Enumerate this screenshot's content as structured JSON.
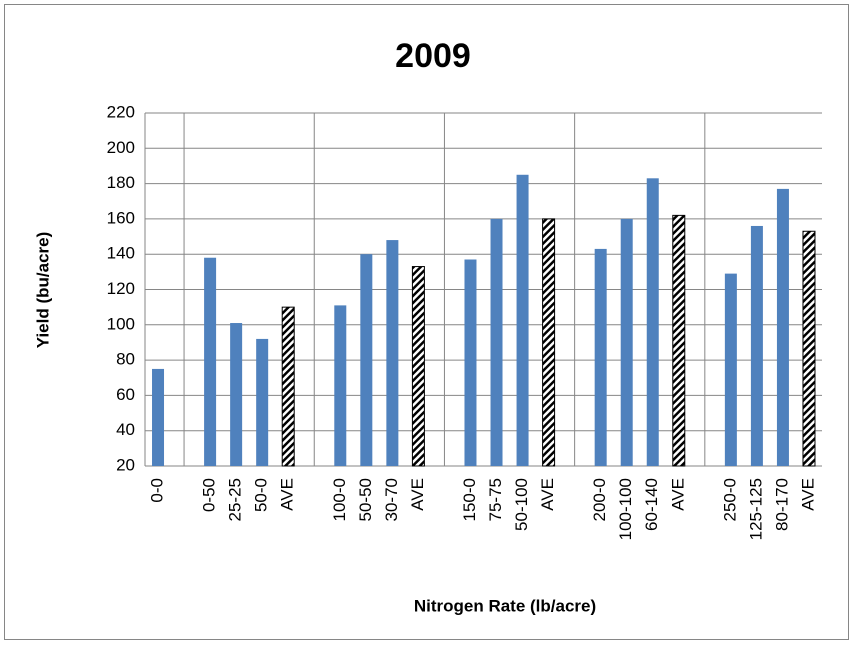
{
  "chart_data": {
    "type": "bar",
    "title": "2009",
    "x_label": "Nitrogen Rate (lb/acre)",
    "y_label": "Yield (bu/acre)",
    "categories": [
      "0-0",
      null,
      "0-50",
      "25-25",
      "50-0",
      "AVE",
      null,
      "100-0",
      "50-50",
      "30-70",
      "AVE",
      null,
      "150-0",
      "75-75",
      "50-100",
      "AVE",
      null,
      "200-0",
      "100-100",
      "60-140",
      "AVE",
      null,
      "250-0",
      "125-125",
      "80-170",
      "AVE"
    ],
    "values": [
      75,
      null,
      138,
      101,
      92,
      110,
      null,
      111,
      140,
      148,
      133,
      null,
      137,
      160,
      185,
      160,
      null,
      143,
      160,
      183,
      162,
      null,
      129,
      156,
      177,
      153
    ],
    "hatched": [
      false,
      null,
      false,
      false,
      false,
      true,
      null,
      false,
      false,
      false,
      true,
      null,
      false,
      false,
      false,
      true,
      null,
      false,
      false,
      false,
      true,
      null,
      false,
      false,
      false,
      true
    ],
    "color": "#4f81bd",
    "ylim": [
      20,
      220
    ],
    "yticks": [
      20,
      40,
      60,
      80,
      100,
      120,
      140,
      160,
      180,
      200,
      220
    ],
    "grid": true
  }
}
